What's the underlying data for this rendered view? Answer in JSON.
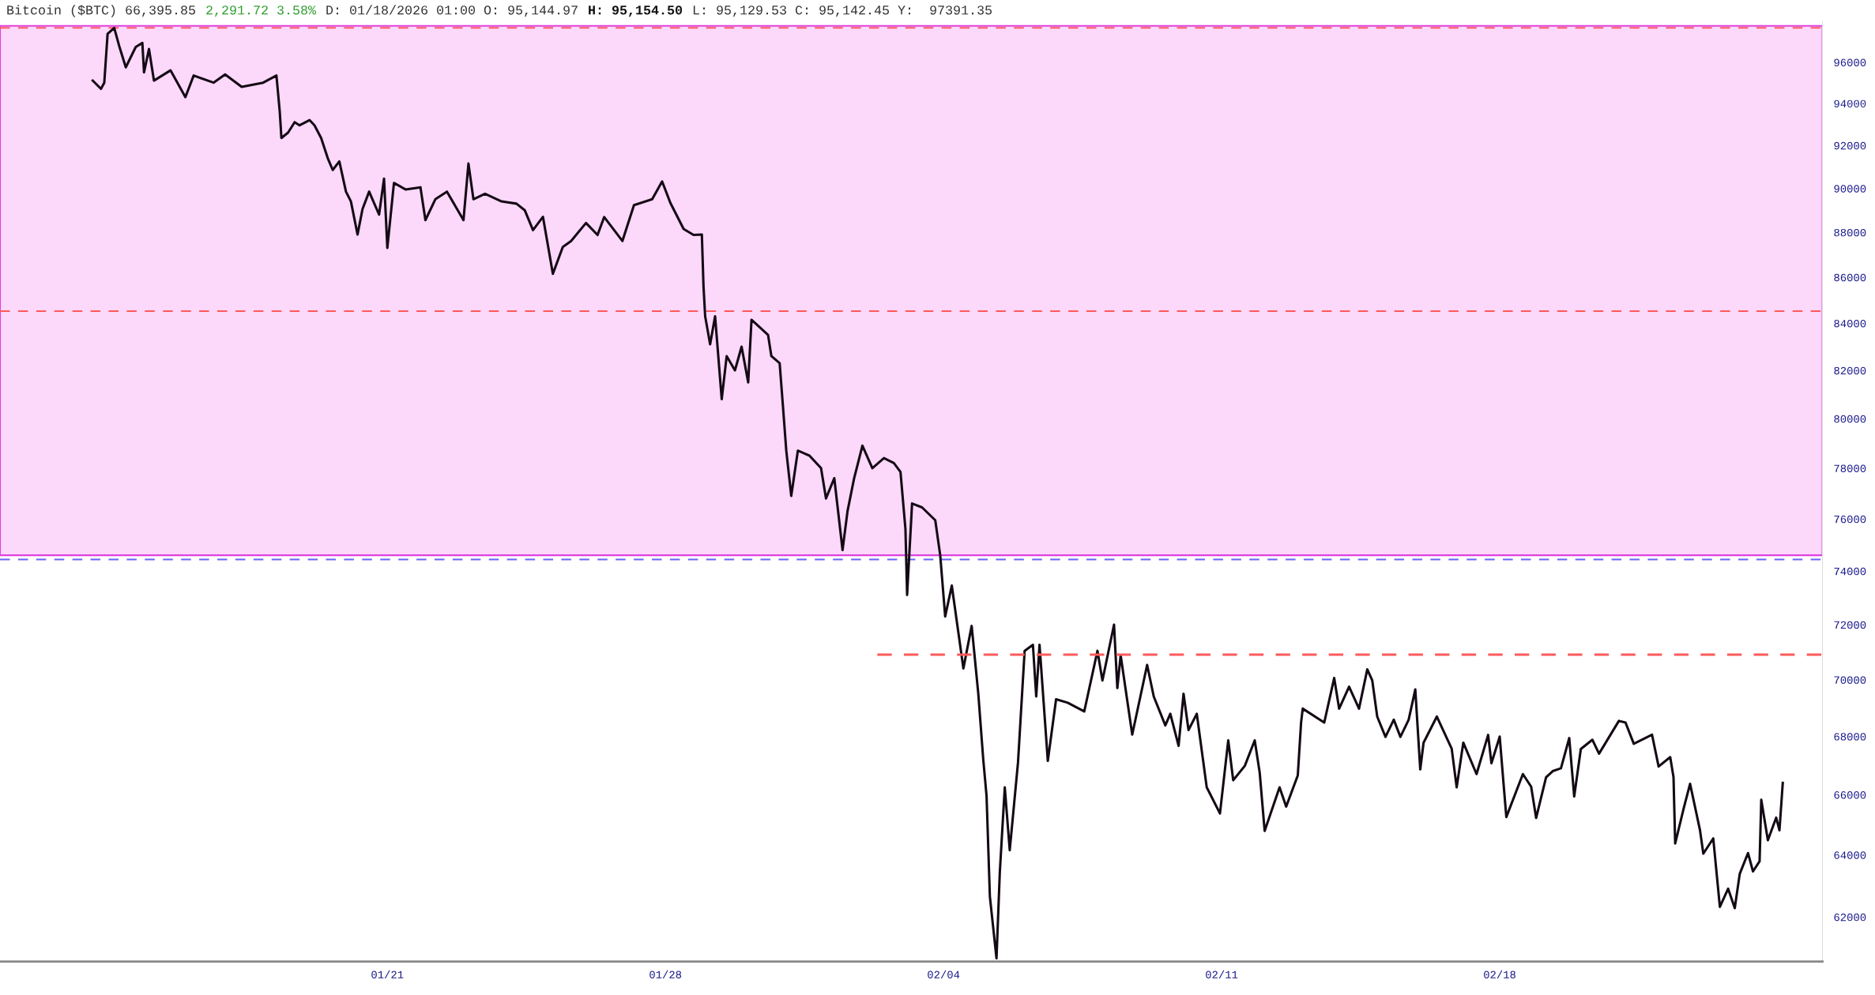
{
  "chart_data": {
    "type": "line",
    "title": "Bitcoin ($BTC) 66,395.85",
    "annotations": [
      "2,291.72 3.58%",
      "D: 01/18/2026 01:00 O: 95,144.97",
      "H: 95,154.50",
      "L: 95,129.53 C: 95,142.45 Y:  97391.35"
    ],
    "log": "y",
    "grid": false,
    "legend": false,
    "marker": "none",
    "xlim": [
      "2026-01-11T06:00",
      "2026-02-26T03:00"
    ],
    "xticks": [
      {
        "value": "2026-01-21",
        "label": "01/21"
      },
      {
        "value": "2026-01-28",
        "label": "01/28"
      },
      {
        "value": "2026-02-04",
        "label": "02/04"
      },
      {
        "value": "2026-02-11",
        "label": "02/11"
      },
      {
        "value": "2026-02-18",
        "label": "02/18"
      }
    ],
    "ylim": [
      60600,
      98000
    ],
    "yticks": [
      62000,
      64000,
      66000,
      68000,
      70000,
      72000,
      74000,
      76000,
      78000,
      80000,
      82000,
      84000,
      86000,
      88000,
      90000,
      92000,
      94000,
      96000
    ],
    "bands": [
      {
        "axis": "y",
        "from": 74600,
        "to": 97800,
        "color": "#fcd8fb"
      }
    ],
    "ref_lines": [
      {
        "axis": "y",
        "value": 97700,
        "color": "#ff5a5a",
        "line_style": "dashed"
      },
      {
        "axis": "y",
        "value": 84520,
        "color": "#ff5a5a",
        "line_style": "dashed"
      },
      {
        "axis": "y",
        "value": 74440,
        "color": "#6464ff",
        "line_style": "dashed"
      }
    ],
    "series": [
      {
        "color": "#140a14",
        "line_style": "solid",
        "x": [
          "2026-01-13T14:00",
          "2026-01-13T19:00",
          "2026-01-13T21:00",
          "2026-01-13T23:00",
          "2026-01-14T03:00",
          "2026-01-14T06:00",
          "2026-01-14T10:00",
          "2026-01-14T16:00",
          "2026-01-14T20:00",
          "2026-01-14T21:00",
          "2026-01-15T00:00",
          "2026-01-15T03:00",
          "2026-01-15T13:00",
          "2026-01-15T22:00",
          "2026-01-16T03:00",
          "2026-01-16T15:00",
          "2026-01-16T22:00",
          "2026-01-17T08:00",
          "2026-01-17T21:00",
          "2026-01-18T05:00",
          "2026-01-18T07:00",
          "2026-01-18T08:00",
          "2026-01-18T12:00",
          "2026-01-18T16:00",
          "2026-01-18T19:00",
          "2026-01-19T01:00",
          "2026-01-19T04:00",
          "2026-01-19T08:00",
          "2026-01-19T12:00",
          "2026-01-19T15:00",
          "2026-01-19T19:00",
          "2026-01-19T23:00",
          "2026-01-20T02:00",
          "2026-01-20T06:00",
          "2026-01-20T09:00",
          "2026-01-20T13:00",
          "2026-01-20T19:00",
          "2026-01-20T22:00",
          "2026-01-21T00:00",
          "2026-01-21T04:00",
          "2026-01-21T11:00",
          "2026-01-21T20:00",
          "2026-01-21T23:00",
          "2026-01-22T05:00",
          "2026-01-22T12:00",
          "2026-01-22T22:00",
          "2026-01-23T01:00",
          "2026-01-23T04:00",
          "2026-01-23T11:00",
          "2026-01-23T21:00",
          "2026-01-24T06:00",
          "2026-01-24T11:00",
          "2026-01-24T16:00",
          "2026-01-24T22:00",
          "2026-01-25T04:00",
          "2026-01-25T10:00",
          "2026-01-25T15:00",
          "2026-01-26T00:00",
          "2026-01-26T07:00",
          "2026-01-26T11:00",
          "2026-01-26T22:00",
          "2026-01-27T05:00",
          "2026-01-27T16:00",
          "2026-01-27T22:00",
          "2026-01-28T03:00",
          "2026-01-28T11:00",
          "2026-01-28T17:00",
          "2026-01-28T22:00",
          "2026-01-28T23:00",
          "2026-01-29T00:00",
          "2026-01-29T03:00",
          "2026-01-29T06:00",
          "2026-01-29T10:00",
          "2026-01-29T13:00",
          "2026-01-29T18:00",
          "2026-01-29T22:00",
          "2026-01-30T02:00",
          "2026-01-30T04:00",
          "2026-01-30T14:00",
          "2026-01-30T16:00",
          "2026-01-30T21:00",
          "2026-01-30T23:00",
          "2026-01-31T01:00",
          "2026-01-31T04:00",
          "2026-01-31T08:00",
          "2026-01-31T15:00",
          "2026-01-31T22:00",
          "2026-02-01T01:00",
          "2026-02-01T06:00",
          "2026-02-01T11:00",
          "2026-02-01T14:00",
          "2026-02-01T18:00",
          "2026-02-01T23:00",
          "2026-02-02T05:00",
          "2026-02-02T12:00",
          "2026-02-02T18:00",
          "2026-02-02T22:00",
          "2026-02-03T01:00",
          "2026-02-03T02:00",
          "2026-02-03T05:00",
          "2026-02-03T11:00",
          "2026-02-03T19:00",
          "2026-02-03T22:00",
          "2026-02-04T01:00",
          "2026-02-04T05:00",
          "2026-02-04T12:00",
          "2026-02-04T17:00",
          "2026-02-04T21:00",
          "2026-02-05T00:00",
          "2026-02-05T02:00",
          "2026-02-05T04:00",
          "2026-02-05T08:00",
          "2026-02-05T10:00",
          "2026-02-05T13:00",
          "2026-02-05T16:00",
          "2026-02-05T21:00",
          "2026-02-06T01:00",
          "2026-02-06T06:00",
          "2026-02-06T08:00",
          "2026-02-06T10:00",
          "2026-02-06T15:00",
          "2026-02-06T20:00",
          "2026-02-07T03:00",
          "2026-02-07T13:00",
          "2026-02-07T21:00",
          "2026-02-08T00:00",
          "2026-02-08T07:00",
          "2026-02-08T09:00",
          "2026-02-08T11:00",
          "2026-02-08T18:00",
          "2026-02-09T03:00",
          "2026-02-09T07:00",
          "2026-02-09T14:00",
          "2026-02-09T17:00",
          "2026-02-09T22:00",
          "2026-02-10T01:00",
          "2026-02-10T04:00",
          "2026-02-10T09:00",
          "2026-02-10T15:00",
          "2026-02-10T23:00",
          "2026-02-11T04:00",
          "2026-02-11T07:00",
          "2026-02-11T14:00",
          "2026-02-11T20:00",
          "2026-02-11T23:00",
          "2026-02-12T02:00",
          "2026-02-12T11:00",
          "2026-02-12T15:00",
          "2026-02-12T22:00",
          "2026-02-13T00:00",
          "2026-02-13T01:00",
          "2026-02-13T14:00",
          "2026-02-13T20:00",
          "2026-02-13T23:00",
          "2026-02-14T05:00",
          "2026-02-14T11:00",
          "2026-02-14T16:00",
          "2026-02-14T19:00",
          "2026-02-14T22:00",
          "2026-02-15T03:00",
          "2026-02-15T08:00",
          "2026-02-15T12:00",
          "2026-02-15T17:00",
          "2026-02-15T21:00",
          "2026-02-16T00:00",
          "2026-02-16T02:00",
          "2026-02-16T10:00",
          "2026-02-16T19:00",
          "2026-02-16T22:00",
          "2026-02-17T02:00",
          "2026-02-17T10:00",
          "2026-02-17T17:00",
          "2026-02-17T19:00",
          "2026-02-18T00:00",
          "2026-02-18T02:00",
          "2026-02-18T04:00",
          "2026-02-18T14:00",
          "2026-02-18T19:00",
          "2026-02-18T22:00",
          "2026-02-19T04:00",
          "2026-02-19T08:00",
          "2026-02-19T13:00",
          "2026-02-19T18:00",
          "2026-02-19T21:00",
          "2026-02-20T01:00",
          "2026-02-20T08:00",
          "2026-02-20T12:00",
          "2026-02-21T00:00",
          "2026-02-21T04:00",
          "2026-02-21T09:00",
          "2026-02-21T20:00",
          "2026-02-22T00:00",
          "2026-02-22T07:00",
          "2026-02-22T09:00",
          "2026-02-22T10:00",
          "2026-02-22T15:00",
          "2026-02-22T19:00",
          "2026-02-23T01:00",
          "2026-02-23T03:00",
          "2026-02-23T09:00",
          "2026-02-23T13:00",
          "2026-02-23T18:00",
          "2026-02-23T22:00",
          "2026-02-24T01:00",
          "2026-02-24T06:00",
          "2026-02-24T09:00",
          "2026-02-24T13:00",
          "2026-02-24T14:00",
          "2026-02-24T18:00",
          "2026-02-24T23:00",
          "2026-02-25T01:00",
          "2026-02-25T03:00"
        ],
        "values": [
          95100,
          94700,
          95000,
          97400,
          97700,
          96800,
          95750,
          96750,
          96950,
          95500,
          96650,
          95100,
          95600,
          94300,
          95350,
          95000,
          95400,
          94800,
          95000,
          95350,
          93600,
          92350,
          92600,
          93100,
          92950,
          93200,
          92950,
          92350,
          91400,
          90850,
          91250,
          89850,
          89400,
          87900,
          89050,
          89850,
          88800,
          90450,
          87300,
          90250,
          89950,
          90050,
          88550,
          89500,
          89850,
          88550,
          91150,
          89500,
          89750,
          89400,
          89300,
          89000,
          88100,
          88700,
          86150,
          87340,
          87610,
          88420,
          87880,
          88690,
          87610,
          89230,
          89500,
          90320,
          89330,
          88150,
          87880,
          87900,
          85600,
          84300,
          83100,
          84300,
          80800,
          82600,
          82000,
          83000,
          81500,
          84150,
          83500,
          82600,
          82300,
          80500,
          78700,
          76900,
          78700,
          78500,
          78000,
          76800,
          77600,
          74800,
          76300,
          77600,
          78900,
          78000,
          78400,
          78200,
          77850,
          75600,
          73100,
          76600,
          76450,
          75950,
          74600,
          72300,
          73450,
          70400,
          71950,
          69500,
          67200,
          65950,
          62650,
          60700,
          63430,
          66250,
          64150,
          67100,
          71040,
          71260,
          69400,
          71260,
          67150,
          69300,
          69180,
          68870,
          71040,
          69970,
          72000,
          69700,
          70880,
          68060,
          70530,
          69400,
          68380,
          68790,
          67670,
          69500,
          68220,
          68790,
          66250,
          65370,
          67860,
          66490,
          66980,
          67860,
          66750,
          64790,
          66250,
          65600,
          66650,
          68480,
          68970,
          68480,
          70060,
          68970,
          69750,
          68970,
          70370,
          69970,
          68690,
          67980,
          68580,
          67980,
          68580,
          69650,
          66860,
          67780,
          68690,
          67570,
          66250,
          67780,
          66700,
          68050,
          67070,
          67990,
          66590,
          65250,
          66700,
          66270,
          65220,
          66590,
          66800,
          66900,
          67940,
          65940,
          67560,
          67880,
          67400,
          68540,
          68480,
          67740,
          68060,
          66960,
          67280,
          66590,
          64370,
          65510,
          66370,
          64810,
          64040,
          64540,
          62320,
          62900,
          62280,
          63380,
          64060,
          63460,
          63790,
          65830,
          64480,
          65230,
          64810,
          66400
        ]
      },
      {
        "color": "#ff5a5a",
        "line_style": "dashed",
        "x": [
          "2026-02-02T08:00",
          "2026-02-26T03:00"
        ],
        "values": [
          70900,
          70900
        ]
      }
    ]
  }
}
